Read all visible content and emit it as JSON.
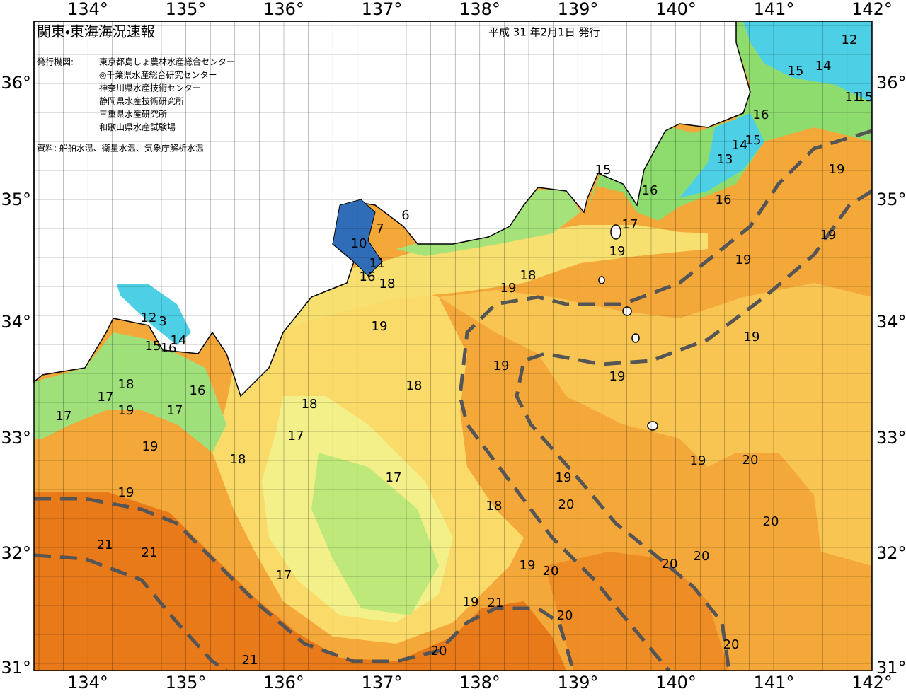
{
  "header": {
    "title": "関東・東海海況速報",
    "issued": "平成 31 年2月1日 発行",
    "publisher_label": "発行機関:",
    "publishers": [
      "東京都島しょ農林水産総合センター",
      "◎千葉県水産総合研究センター",
      "神奈川県水産技術センター",
      "静岡県水産技術研究所",
      "三重県水産研究所",
      "和歌山県水産試験場"
    ],
    "source": "資料: 船舶水温、衛星水温、気象庁解析水温"
  },
  "axes": {
    "longitudes": [
      "134°",
      "135°",
      "136°",
      "137°",
      "138°",
      "139°",
      "140°",
      "141°",
      "142°"
    ],
    "latitudes": [
      "36°",
      "35°",
      "34°",
      "33°",
      "32°",
      "31°"
    ]
  },
  "contours": [
    12,
    15,
    14,
    11,
    15,
    16,
    15,
    14,
    13,
    15,
    16,
    16,
    19,
    17,
    19,
    19,
    19,
    18,
    19,
    6,
    7,
    10,
    11,
    16,
    18,
    19,
    19,
    19,
    19,
    18,
    18,
    17,
    17,
    18,
    19,
    20,
    19,
    20,
    20,
    20,
    20,
    19,
    20,
    17,
    19,
    21,
    20,
    20,
    20,
    21,
    21,
    21,
    19,
    19,
    18,
    17,
    17,
    18,
    19,
    17,
    16,
    12,
    3,
    14,
    15,
    16
  ]
}
